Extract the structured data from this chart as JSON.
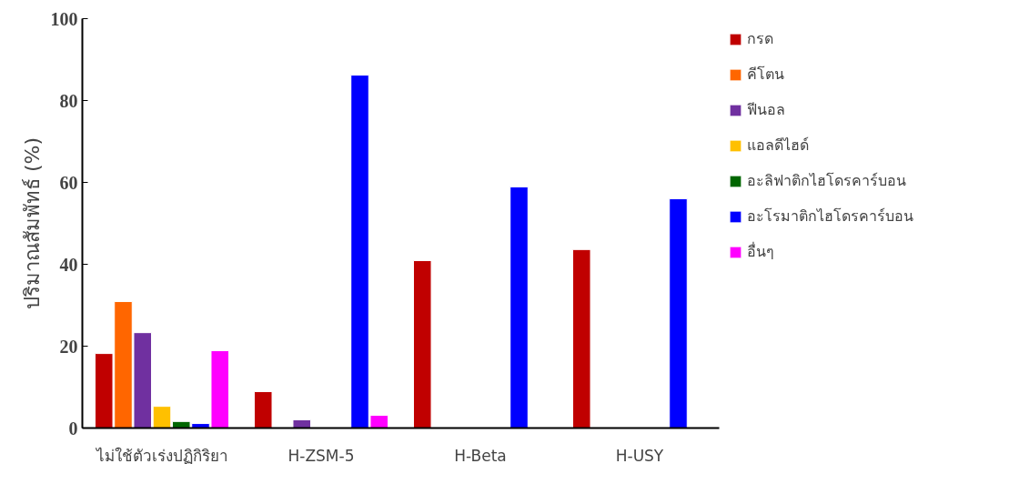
{
  "chart_data": {
    "type": "bar",
    "ylabel": "ปริมาณสัมพัทธ์ (%)",
    "categories": [
      "ไม่ใช้ตัวเร่งปฏิกิริยา",
      "H-ZSM-5",
      "H-Beta",
      "H-USY"
    ],
    "series": [
      {
        "name": "กรด",
        "color": "#c00000",
        "values": [
          18.2,
          8.9,
          40.9,
          43.6
        ]
      },
      {
        "name": "คีโตน",
        "color": "#ff6600",
        "values": [
          30.9,
          null,
          null,
          null
        ]
      },
      {
        "name": "ฟีนอล",
        "color": "#7030a0",
        "values": [
          23.3,
          2.0,
          null,
          null
        ]
      },
      {
        "name": "แอลดีไฮด์",
        "color": "#ffc000",
        "values": [
          5.3,
          null,
          null,
          null
        ]
      },
      {
        "name": "อะลิฟาติกไฮโดรคาร์บอน",
        "color": "#006600",
        "values": [
          1.6,
          null,
          null,
          null
        ]
      },
      {
        "name": "อะโรมาติกไฮโดรคาร์บอน",
        "color": "#0000ff",
        "values": [
          1.1,
          86.2,
          58.9,
          56.0
        ]
      },
      {
        "name": "อื่นๆ",
        "color": "#ff00ff",
        "values": [
          18.9,
          3.1,
          null,
          null
        ]
      }
    ],
    "ylim": [
      0,
      100
    ],
    "yticks": [
      0,
      20,
      40,
      60,
      80,
      100
    ],
    "grid": false,
    "legend": "right"
  }
}
